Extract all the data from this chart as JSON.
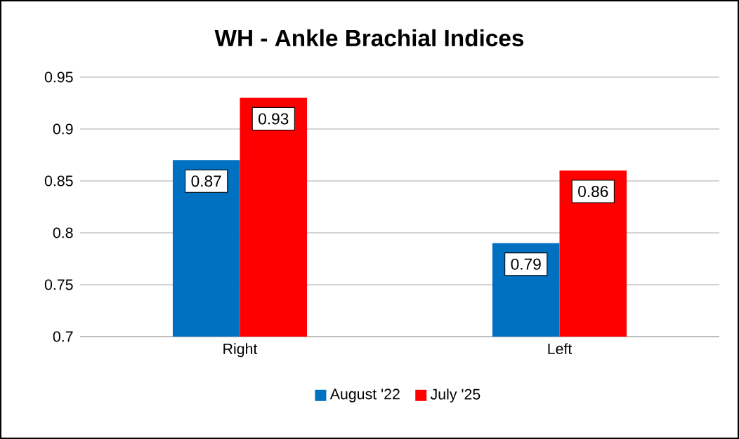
{
  "chart_data": {
    "type": "bar",
    "title": "WH - Ankle Brachial Indices",
    "categories": [
      "Right",
      "Left"
    ],
    "series": [
      {
        "name": "August '22",
        "color": "#0070c0",
        "values": [
          0.87,
          0.79
        ]
      },
      {
        "name": "July '25",
        "color": "#ff0000",
        "values": [
          0.93,
          0.86
        ]
      }
    ],
    "ylim": [
      0.7,
      0.95
    ],
    "yticks": [
      0.7,
      0.75,
      0.8,
      0.85,
      0.9,
      0.95
    ],
    "grid": "y",
    "legend": "bottom",
    "data_labels": true
  }
}
